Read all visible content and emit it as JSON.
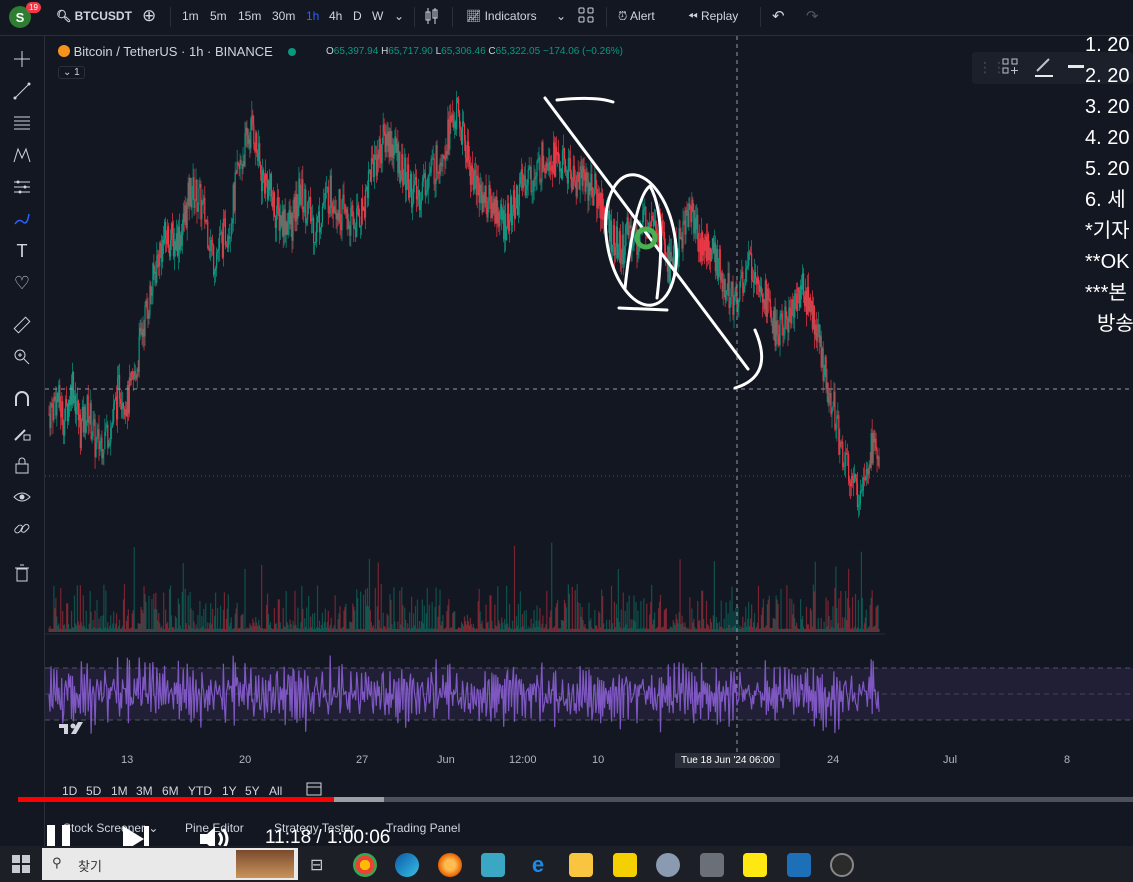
{
  "topbar": {
    "avatar_letter": "S",
    "notification_count": "19",
    "symbol": "BTCUSDT",
    "intervals": [
      "1m",
      "5m",
      "15m",
      "30m",
      "1h",
      "4h",
      "D",
      "W"
    ],
    "active_interval": "1h",
    "indicators_label": "Indicators",
    "alert_label": "Alert",
    "replay_label": "Replay"
  },
  "legend": {
    "title": "Bitcoin / TetherUS · 1h · BINANCE",
    "open_label": "O",
    "open": "65,397.94",
    "high_label": "H",
    "high": "65,717.90",
    "low_label": "L",
    "low": "65,306.46",
    "close_label": "C",
    "close": "65,322.05",
    "change": "−174.06 (−0.26%)",
    "indicator_count": "1"
  },
  "notes": [
    "1. 20",
    "2. 20",
    "3. 20",
    "4. 20",
    "5. 20",
    "6. 세",
    "*기자",
    "**OK",
    "***본",
    "방송"
  ],
  "date_axis": {
    "labels": [
      "13",
      "20",
      "27",
      "Jun",
      "12:00",
      "10",
      "24",
      "Jul",
      "8"
    ],
    "crosshair_label": "Tue 18 Jun '24   06:00"
  },
  "ranges": [
    "1D",
    "5D",
    "1M",
    "3M",
    "6M",
    "YTD",
    "1Y",
    "5Y",
    "All"
  ],
  "bottom_tabs": [
    "Stock Screener",
    "Pine Editor",
    "Strategy Tester",
    "Trading Panel"
  ],
  "video": {
    "current_time": "11:18",
    "duration": "1:00:06",
    "time_display": "11:18 / 1:00:06",
    "progress": 0.283,
    "buffered": 0.328
  },
  "taskbar": {
    "search_label": "찾기"
  },
  "colors": {
    "up": "#089981",
    "down": "#f23645",
    "background": "#131722",
    "rsi": "#7e57c2",
    "progress": "#ff0000"
  },
  "chart_data": {
    "type": "candlestick",
    "price_series": [
      66200,
      66500,
      66100,
      66800,
      65900,
      66300,
      65600,
      65800,
      66000,
      66700,
      66400,
      66900,
      67800,
      68400,
      69100,
      69400,
      69300,
      69500,
      70200,
      70100,
      69700,
      69000,
      69300,
      69600,
      70400,
      71000,
      71400,
      70500,
      70300,
      69800,
      69700,
      69600,
      70200,
      69900,
      69500,
      70000,
      70200,
      69900,
      69700,
      69600,
      69900,
      70600,
      70900,
      71200,
      71000,
      70600,
      70300,
      70100,
      70400,
      70600,
      70900,
      71300,
      71600,
      71100,
      70500,
      70200,
      70000,
      69900,
      69600,
      69800,
      70200,
      70500,
      70400,
      70800,
      70900,
      70700,
      70600,
      70400,
      70500,
      70300,
      70100,
      69800,
      69300,
      69100,
      69500,
      69300,
      69700,
      69900,
      69500,
      68900,
      69100,
      69600,
      69900,
      69300,
      69200,
      69000,
      68700,
      68300,
      68400,
      68800,
      68900,
      68500,
      68000,
      67600,
      67900,
      68100,
      68500,
      68200,
      67600,
      66900,
      66400,
      65600,
      65200,
      64700,
      65200,
      65600,
      65400
    ]
  }
}
